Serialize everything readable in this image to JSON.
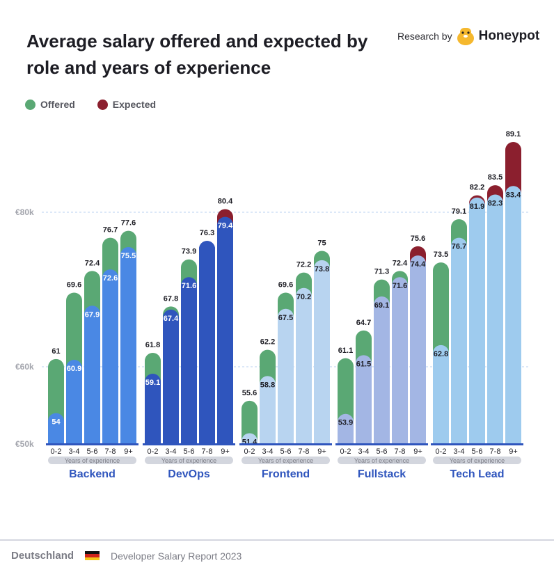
{
  "header": {
    "title": "Average salary offered and expected by role and years of experience",
    "research_by": "Research by",
    "brand": "Honeypot"
  },
  "footer": {
    "country": "Deutschland",
    "report": "Developer Salary Report 2023",
    "flag_icon": "germany-flag-icon"
  },
  "colors": {
    "offered": "#5aa874",
    "expected": "#8b1f2e",
    "axis": "#2f55bd"
  },
  "chart_data": {
    "type": "bar",
    "title": "Average salary offered and expected by role and years of experience",
    "legend": [
      {
        "name": "Offered",
        "color": "#5aa874"
      },
      {
        "name": "Expected",
        "color": "#8b1f2e"
      }
    ],
    "legend_position": "top-left",
    "y_ticks": [
      {
        "value": 50,
        "label": "€50k"
      },
      {
        "value": 60,
        "label": "€60k"
      },
      {
        "value": 80,
        "label": "€80k"
      }
    ],
    "ylim": [
      50,
      90
    ],
    "grid": true,
    "xlabel": "Years of experience",
    "categories": [
      "0-2",
      "3-4",
      "5-6",
      "7-8",
      "9+"
    ],
    "groups": [
      {
        "role": "Backend",
        "color": "#4a88e4",
        "inner_text": "#ffffff",
        "offered": [
          61,
          69.6,
          72.4,
          76.7,
          77.6
        ],
        "expected": [
          54,
          60.9,
          67.9,
          72.6,
          75.5
        ]
      },
      {
        "role": "DevOps",
        "color": "#2f55bd",
        "inner_text": "#ffffff",
        "offered": [
          61.8,
          67.8,
          73.9,
          76.3,
          79.4
        ],
        "expected": [
          59.1,
          67.4,
          71.6,
          76.3,
          80.4
        ]
      },
      {
        "role": "Frontend",
        "color": "#b8d4f0",
        "inner_text": "#1d1d24",
        "offered": [
          55.6,
          62.2,
          69.6,
          72.2,
          75
        ],
        "expected": [
          51.4,
          58.8,
          67.5,
          70.2,
          73.8
        ]
      },
      {
        "role": "Fullstack",
        "color": "#a3b6e4",
        "inner_text": "#1d1d24",
        "offered": [
          61.1,
          64.7,
          71.3,
          72.4,
          74.4
        ],
        "expected": [
          53.9,
          61.5,
          69.1,
          71.6,
          75.6
        ]
      },
      {
        "role": "Tech Lead",
        "color": "#9ecbee",
        "inner_text": "#1d1d24",
        "offered": [
          73.5,
          79.1,
          81.9,
          82.3,
          83.4
        ],
        "expected": [
          62.8,
          76.7,
          82.2,
          83.5,
          89.1
        ]
      }
    ]
  }
}
